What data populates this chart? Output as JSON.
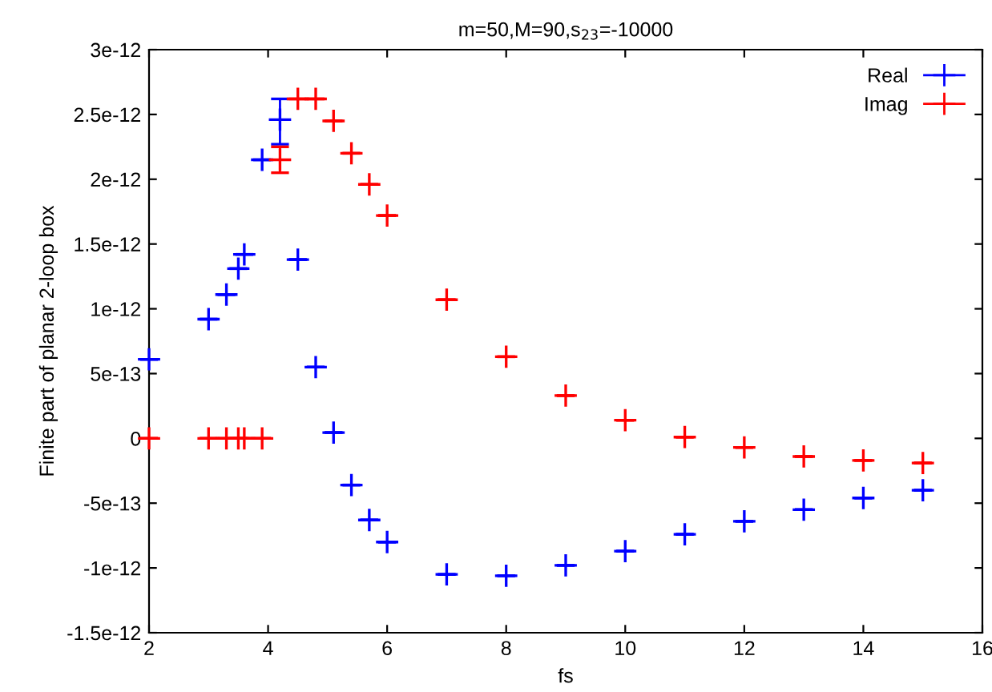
{
  "chart_data": {
    "type": "scatter",
    "title": "m=50,M=90,s$_{23}$=-10000",
    "xlabel": "fs",
    "ylabel": "Finite part of planar 2-loop box",
    "x": [
      2,
      3,
      3.3,
      3.5,
      3.6,
      3.9,
      4.2,
      4.5,
      4.8,
      5.1,
      5.4,
      5.7,
      6,
      7,
      8,
      9,
      10,
      11,
      12,
      13,
      14,
      15
    ],
    "series": [
      {
        "name": "Real",
        "color": "#0000ff",
        "values": [
          6.1e-13,
          9.2e-13,
          1.11e-12,
          1.31e-12,
          1.42e-12,
          2.15e-12,
          2.46e-12,
          1.38e-12,
          5.5e-13,
          4.5e-14,
          -3.6e-13,
          -6.3e-13,
          -8e-13,
          -1.05e-12,
          -1.06e-12,
          -9.8e-13,
          -8.7e-13,
          -7.4e-13,
          -6.4e-13,
          -5.5e-13,
          -4.6e-13,
          -4e-13
        ],
        "errors": [
          null,
          null,
          null,
          null,
          null,
          null,
          [
            2.27e-12,
            2.62e-12
          ],
          null,
          null,
          null,
          null,
          null,
          null,
          null,
          null,
          null,
          null,
          null,
          null,
          null,
          null,
          null
        ]
      },
      {
        "name": "Imag",
        "color": "#ff0000",
        "values": [
          0,
          0,
          0,
          0,
          0,
          0,
          2.15e-12,
          2.62e-12,
          2.62e-12,
          2.45e-12,
          2.2e-12,
          1.96e-12,
          1.72e-12,
          1.07e-12,
          6.3e-13,
          3.3e-13,
          1.4e-13,
          1e-14,
          -7e-14,
          -1.4e-13,
          -1.7e-13,
          -1.9e-13
        ],
        "errors": [
          null,
          null,
          null,
          null,
          null,
          null,
          [
            2.05e-12,
            2.25e-12
          ],
          null,
          null,
          null,
          null,
          null,
          null,
          null,
          null,
          null,
          null,
          null,
          null,
          null,
          null,
          null
        ]
      }
    ],
    "xlim": [
      2,
      16
    ],
    "xticks": [
      2,
      4,
      6,
      8,
      10,
      12,
      14,
      16
    ],
    "ylim": [
      -1.5e-12,
      3e-12
    ],
    "yticks": [
      -1.5e-12,
      -1e-12,
      -5e-13,
      0,
      5e-13,
      1e-12,
      1.5e-12,
      2e-12,
      2.5e-12,
      3e-12
    ],
    "marker": "cross",
    "legend": "top right",
    "grid": false
  }
}
